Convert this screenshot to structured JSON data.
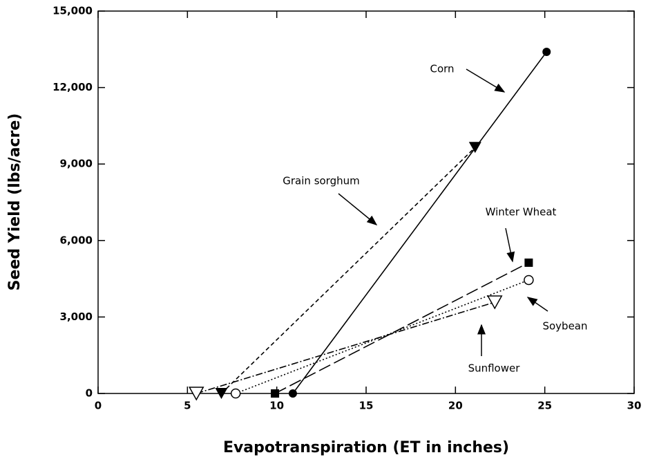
{
  "chart_data": {
    "type": "line",
    "xlabel": "Evapotranspiration (ET in inches)",
    "ylabel": "Seed Yield (lbs/acre)",
    "xlim": [
      0,
      30
    ],
    "xticks": [
      0,
      5,
      10,
      15,
      20,
      25,
      30
    ],
    "ylim": [
      0,
      15000
    ],
    "yticks": [
      0,
      {
        "value": 3000,
        "label": "3,000"
      },
      {
        "value": 6000,
        "label": "6,000"
      },
      {
        "value": 9000,
        "label": "9,000"
      },
      {
        "value": 12000,
        "label": "12,000"
      },
      {
        "value": 15000,
        "label": "15,000"
      }
    ],
    "grid": false,
    "series": [
      {
        "name": "Corn",
        "color": "#000000",
        "marker": "circle",
        "x": [
          10.9,
          25.1
        ],
        "values": [
          0,
          13400
        ]
      },
      {
        "name": "Grain sorghum",
        "color": "#000000",
        "marker": "triangle-down",
        "x": [
          6.9,
          21.1
        ],
        "values": [
          0,
          9650
        ]
      },
      {
        "name": "Winter Wheat",
        "color": "#000000",
        "marker": "square",
        "x": [
          9.9,
          24.1
        ],
        "values": [
          0,
          5130
        ]
      },
      {
        "name": "Soybean",
        "color": "#000000",
        "marker": "circle-open",
        "x": [
          7.7,
          24.1
        ],
        "values": [
          0,
          4450
        ]
      },
      {
        "name": "Sunflower",
        "color": "#000000",
        "marker": "triangle-down-open",
        "x": [
          5.5,
          22.2
        ],
        "values": [
          0,
          3580
        ]
      }
    ]
  }
}
